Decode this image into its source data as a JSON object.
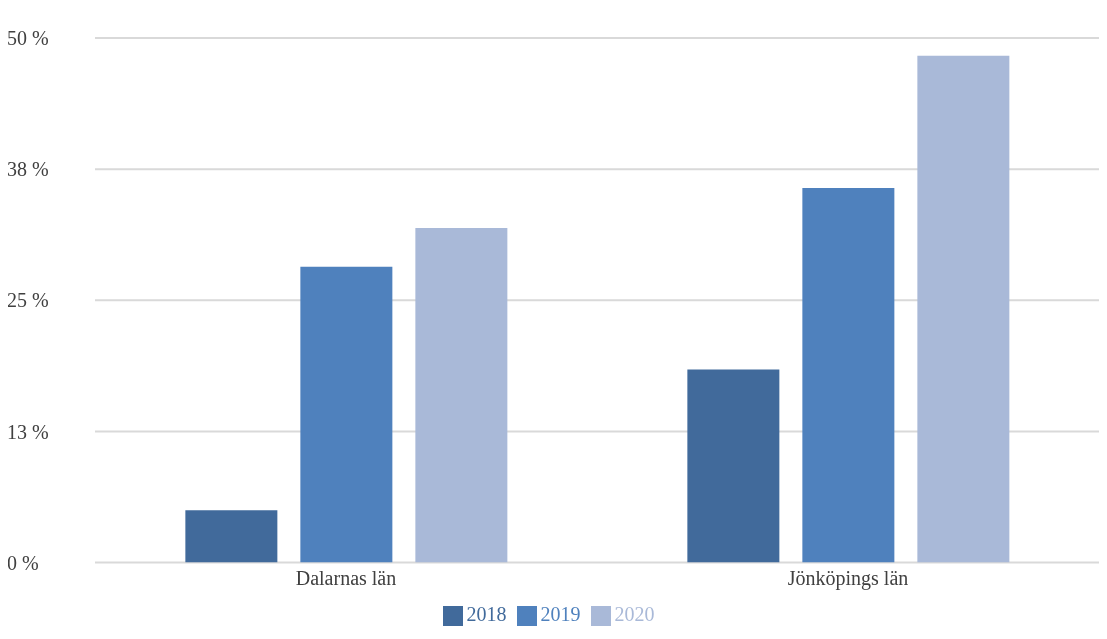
{
  "chart_data": {
    "type": "bar",
    "categories": [
      "Dalarnas län",
      "Jönköpings län"
    ],
    "series": [
      {
        "name": "2018",
        "color": "#416a9b",
        "values": [
          5.0,
          18.4
        ]
      },
      {
        "name": "2019",
        "color": "#4f81bd",
        "values": [
          28.2,
          35.7
        ]
      },
      {
        "name": "2020",
        "color": "#a9b9d8",
        "values": [
          31.9,
          48.3
        ]
      }
    ],
    "ylim": [
      0,
      50
    ],
    "yticks": [
      {
        "value": 0,
        "label": "0 %"
      },
      {
        "value": 12.5,
        "label": "13 %"
      },
      {
        "value": 25,
        "label": "25 %"
      },
      {
        "value": 37.5,
        "label": "38 %"
      },
      {
        "value": 50,
        "label": "50 %"
      }
    ],
    "grid": "y",
    "legend": "bottom"
  }
}
